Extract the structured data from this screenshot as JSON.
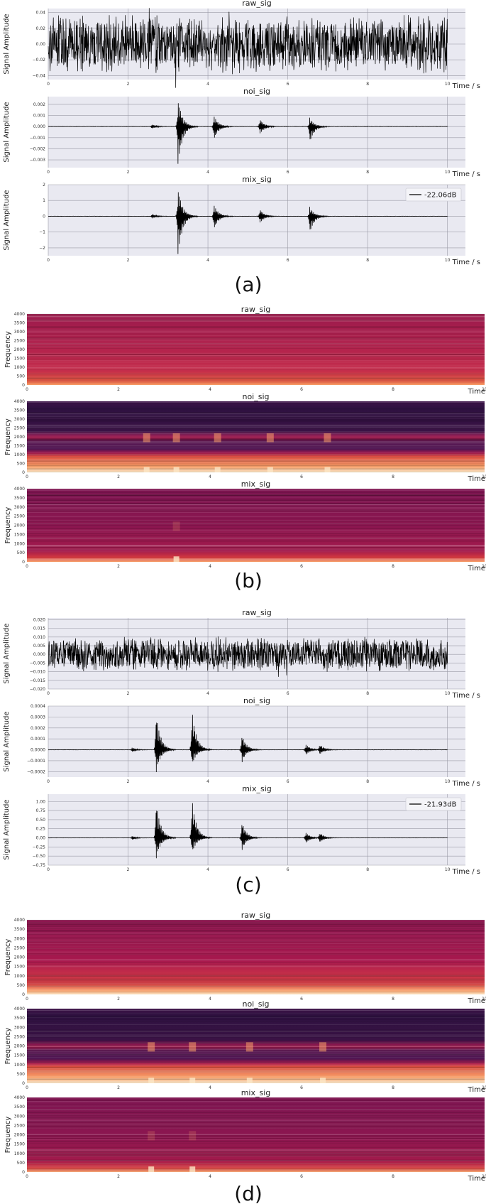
{
  "colors": {
    "axes_bg": "#e9e9f1",
    "grid": "#9a9aa6",
    "signal": "#000000",
    "spec_dark": "#2e1140",
    "spec_mid": "#a8184a",
    "spec_light": "#f7a06a",
    "spec_bright": "#fbe6c6"
  },
  "figure_labels": [
    "(a)",
    "(b)",
    "(c)",
    "(d)"
  ],
  "chart_data": [
    {
      "panel": "(a)",
      "type": "line",
      "title": "raw_sig",
      "xlabel": "Time / s",
      "ylabel": "Signal Amplitude",
      "xlim": [
        0,
        10
      ],
      "ylim": [
        -0.045,
        0.045
      ],
      "xticks": [
        0,
        2,
        4,
        6,
        8,
        10
      ],
      "yticks": [
        -0.04,
        -0.02,
        0.0,
        0.02,
        0.04
      ],
      "ytick_labels": [
        "−0.04",
        "−0.02",
        "0.00",
        "0.02",
        "0.04"
      ],
      "grid": true,
      "noise_amplitude": 0.03,
      "bursts": []
    },
    {
      "panel": "(a)",
      "type": "line",
      "title": "noi_sig",
      "xlabel": "Time / s",
      "ylabel": "Signal Amplitude",
      "xlim": [
        0,
        10
      ],
      "ylim": [
        -0.0037,
        0.0027
      ],
      "xticks": [
        0,
        2,
        4,
        6,
        8,
        10
      ],
      "yticks": [
        -0.003,
        -0.002,
        -0.001,
        0.0,
        0.001,
        0.002
      ],
      "ytick_labels": [
        "−0.003",
        "−0.002",
        "−0.001",
        "0.000",
        "0.001",
        "0.002"
      ],
      "grid": true,
      "noise_amplitude": 5e-05,
      "bursts": [
        {
          "t": 2.6,
          "amp_pos": 0.0002,
          "amp_neg": -0.0002
        },
        {
          "t": 3.25,
          "amp_pos": 0.0025,
          "amp_neg": -0.0035
        },
        {
          "t": 4.15,
          "amp_pos": 0.001,
          "amp_neg": -0.0012
        },
        {
          "t": 5.3,
          "amp_pos": 0.0007,
          "amp_neg": -0.0007
        },
        {
          "t": 6.55,
          "amp_pos": 0.0008,
          "amp_neg": -0.0015
        }
      ]
    },
    {
      "panel": "(a)",
      "type": "line",
      "title": "mix_sig",
      "xlabel": "Time / s",
      "ylabel": "Signal Amplitude",
      "xlim": [
        0,
        10
      ],
      "ylim": [
        -2.5,
        2.0
      ],
      "xticks": [
        0,
        2,
        4,
        6,
        8,
        10
      ],
      "yticks": [
        -2,
        -1,
        0,
        1,
        2
      ],
      "ytick_labels": [
        "−2",
        "−1",
        "0",
        "1",
        "2"
      ],
      "grid": true,
      "noise_amplitude": 0.03,
      "legend": {
        "label": "-22.06dB",
        "placement": "top-right"
      },
      "bursts": [
        {
          "t": 2.6,
          "amp_pos": 0.15,
          "amp_neg": -0.15
        },
        {
          "t": 3.25,
          "amp_pos": 1.8,
          "amp_neg": -2.5
        },
        {
          "t": 4.15,
          "amp_pos": 0.75,
          "amp_neg": -0.85
        },
        {
          "t": 5.3,
          "amp_pos": 0.45,
          "amp_neg": -0.45
        },
        {
          "t": 6.55,
          "amp_pos": 0.6,
          "amp_neg": -1.1
        }
      ]
    },
    {
      "panel": "(b)",
      "type": "heatmap",
      "title": "raw_sig",
      "xlabel": "Time",
      "ylabel": "Frequency",
      "xlim": [
        0,
        10
      ],
      "ylim": [
        0,
        4000
      ],
      "xticks": [
        0,
        2,
        4,
        6,
        8,
        10
      ],
      "yticks": [
        0,
        500,
        1000,
        1500,
        2000,
        2500,
        3000,
        3500,
        4000
      ],
      "style": "uniform",
      "bursts": []
    },
    {
      "panel": "(b)",
      "type": "heatmap",
      "title": "noi_sig",
      "xlabel": "Time",
      "ylabel": "Frequency",
      "xlim": [
        0,
        10
      ],
      "ylim": [
        0,
        4000
      ],
      "xticks": [
        0,
        2,
        4,
        6,
        8,
        10
      ],
      "yticks": [
        0,
        500,
        1000,
        1500,
        2000,
        2500,
        3000,
        3500,
        4000
      ],
      "style": "banded",
      "bursts": [
        2.6,
        3.25,
        4.15,
        5.3,
        6.55
      ]
    },
    {
      "panel": "(b)",
      "type": "heatmap",
      "title": "mix_sig",
      "xlabel": "Time",
      "ylabel": "Frequency",
      "xlim": [
        0,
        10
      ],
      "ylim": [
        0,
        4000
      ],
      "xticks": [
        0,
        2,
        4,
        6,
        8,
        10
      ],
      "yticks": [
        0,
        500,
        1000,
        1500,
        2000,
        2500,
        3000,
        3500,
        4000
      ],
      "style": "mix",
      "bursts": [
        3.25
      ]
    },
    {
      "panel": "(c)",
      "type": "line",
      "title": "raw_sig",
      "xlabel": "Time / s",
      "ylabel": "Signal Amplitude",
      "xlim": [
        0,
        10
      ],
      "ylim": [
        -0.02,
        0.021
      ],
      "xticks": [
        0,
        2,
        4,
        6,
        8,
        10
      ],
      "yticks": [
        -0.02,
        -0.015,
        -0.01,
        -0.005,
        0.0,
        0.005,
        0.01,
        0.015,
        0.02
      ],
      "ytick_labels": [
        "−0.020",
        "−0.015",
        "−0.010",
        "−0.005",
        "0.000",
        "0.005",
        "0.010",
        "0.015",
        "0.020"
      ],
      "grid": true,
      "noise_amplitude": 0.008,
      "bursts": []
    },
    {
      "panel": "(c)",
      "type": "line",
      "title": "noi_sig",
      "xlabel": "Time / s",
      "ylabel": "Signal Amplitude",
      "xlim": [
        0,
        10
      ],
      "ylim": [
        -0.00025,
        0.0004
      ],
      "xticks": [
        0,
        2,
        4,
        6,
        8,
        10
      ],
      "yticks": [
        -0.0002,
        -0.0001,
        0.0,
        0.0001,
        0.0002,
        0.0003,
        0.0004
      ],
      "ytick_labels": [
        "−0.0002",
        "−0.0001",
        "0.0000",
        "0.0001",
        "0.0002",
        "0.0003",
        "0.0004"
      ],
      "grid": true,
      "noise_amplitude": 5e-06,
      "bursts": [
        {
          "t": 2.1,
          "amp_pos": 2e-05,
          "amp_neg": -2e-05
        },
        {
          "t": 2.7,
          "amp_pos": 0.00035,
          "amp_neg": -0.00022
        },
        {
          "t": 3.6,
          "amp_pos": 0.00037,
          "amp_neg": -0.00015
        },
        {
          "t": 4.85,
          "amp_pos": 0.00014,
          "amp_neg": -0.00012
        },
        {
          "t": 6.45,
          "amp_pos": 5e-05,
          "amp_neg": -5e-05
        },
        {
          "t": 6.8,
          "amp_pos": 5e-05,
          "amp_neg": -4e-05
        }
      ]
    },
    {
      "panel": "(c)",
      "type": "line",
      "title": "mix_sig",
      "xlabel": "Time / s",
      "ylabel": "Signal Amplitude",
      "xlim": [
        0,
        10
      ],
      "ylim": [
        -0.75,
        1.2
      ],
      "xticks": [
        0,
        2,
        4,
        6,
        8,
        10
      ],
      "yticks": [
        -0.75,
        -0.5,
        -0.25,
        0.0,
        0.25,
        0.5,
        0.75,
        1.0
      ],
      "ytick_labels": [
        "−0.75",
        "−0.50",
        "−0.25",
        "0.00",
        "0.25",
        "0.50",
        "0.75",
        "1.00"
      ],
      "grid": true,
      "noise_amplitude": 0.01,
      "legend": {
        "label": "-21.93dB",
        "placement": "top-right"
      },
      "bursts": [
        {
          "t": 2.1,
          "amp_pos": 0.05,
          "amp_neg": -0.05
        },
        {
          "t": 2.7,
          "amp_pos": 1.05,
          "amp_neg": -0.6
        },
        {
          "t": 3.6,
          "amp_pos": 1.1,
          "amp_neg": -0.45
        },
        {
          "t": 4.85,
          "amp_pos": 0.45,
          "amp_neg": -0.35
        },
        {
          "t": 6.45,
          "amp_pos": 0.15,
          "amp_neg": -0.15
        },
        {
          "t": 6.8,
          "amp_pos": 0.15,
          "amp_neg": -0.12
        }
      ]
    },
    {
      "panel": "(d)",
      "type": "heatmap",
      "title": "raw_sig",
      "xlabel": "Time",
      "ylabel": "Frequency",
      "xlim": [
        0,
        10
      ],
      "ylim": [
        0,
        4000
      ],
      "xticks": [
        0,
        2,
        4,
        6,
        8,
        10
      ],
      "yticks": [
        0,
        500,
        1000,
        1500,
        2000,
        2500,
        3000,
        3500,
        4000
      ],
      "style": "uniform_low",
      "bursts": []
    },
    {
      "panel": "(d)",
      "type": "heatmap",
      "title": "noi_sig",
      "xlabel": "Time",
      "ylabel": "Frequency",
      "xlim": [
        0,
        10
      ],
      "ylim": [
        0,
        4000
      ],
      "xticks": [
        0,
        2,
        4,
        6,
        8,
        10
      ],
      "yticks": [
        0,
        500,
        1000,
        1500,
        2000,
        2500,
        3000,
        3500,
        4000
      ],
      "style": "banded",
      "bursts": [
        2.7,
        3.6,
        4.85,
        6.45
      ]
    },
    {
      "panel": "(d)",
      "type": "heatmap",
      "title": "mix_sig",
      "xlabel": "Time",
      "ylabel": "Frequency",
      "xlim": [
        0,
        10
      ],
      "ylim": [
        0,
        4000
      ],
      "xticks": [
        0,
        2,
        4,
        6,
        8,
        10
      ],
      "yticks": [
        0,
        500,
        1000,
        1500,
        2000,
        2500,
        3000,
        3500,
        4000
      ],
      "style": "mix",
      "bursts": [
        2.7,
        3.6
      ]
    }
  ]
}
